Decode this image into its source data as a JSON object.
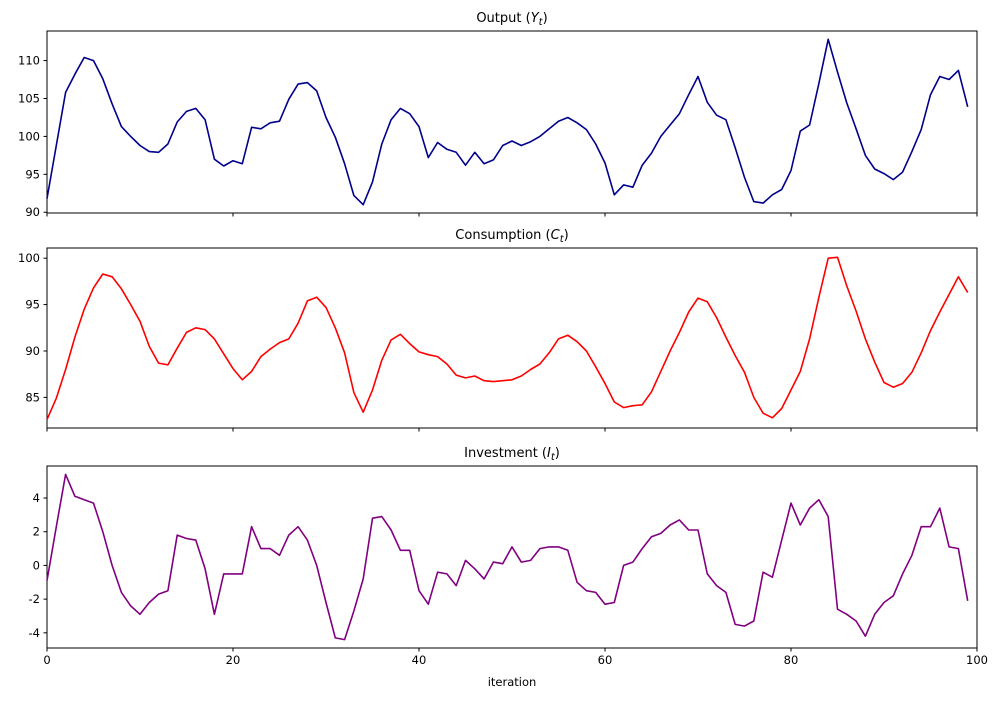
{
  "figure": {
    "xlabel": "iteration",
    "x_ticks": [
      0,
      20,
      40,
      60,
      80,
      100
    ],
    "background_color": "#ffffff",
    "spine_color": "#000000"
  },
  "chart_data": [
    {
      "id": "output",
      "type": "line",
      "title_prefix": "Output (",
      "title_var": "Y",
      "title_sub": "t",
      "title_suffix": ")",
      "color": "#00008B",
      "xlim": [
        0,
        100
      ],
      "ylim": [
        89.9,
        113.9
      ],
      "yticks": [
        90,
        95,
        100,
        105,
        110
      ],
      "grid": false,
      "legend": "none",
      "x_start": 0,
      "values": [
        91.8,
        98.8,
        105.8,
        108.2,
        110.4,
        110.0,
        107.6,
        104.3,
        101.3,
        100.0,
        98.8,
        98.0,
        97.9,
        99.0,
        101.9,
        103.3,
        103.7,
        102.2,
        97.0,
        96.1,
        96.8,
        96.4,
        101.2,
        101.0,
        101.8,
        102.0,
        104.9,
        106.9,
        107.1,
        106.0,
        102.5,
        99.9,
        96.4,
        92.2,
        91.0,
        94.0,
        99.0,
        102.2,
        103.7,
        103.0,
        101.3,
        97.2,
        99.2,
        98.3,
        97.9,
        96.2,
        97.9,
        96.4,
        96.9,
        98.8,
        99.4,
        98.8,
        99.3,
        100.0,
        101.0,
        102.0,
        102.5,
        101.8,
        100.9,
        99.0,
        96.5,
        92.3,
        93.6,
        93.3,
        96.2,
        97.8,
        100.0,
        101.5,
        103.0,
        105.5,
        107.9,
        104.5,
        102.8,
        102.2,
        98.5,
        94.6,
        91.4,
        91.2,
        92.3,
        93.0,
        95.5,
        100.7,
        101.5,
        107.0,
        112.8,
        108.5,
        104.4,
        101.0,
        97.5,
        95.7,
        95.1,
        94.3,
        95.3,
        98.0,
        100.9,
        105.5,
        107.9,
        107.5,
        108.7,
        103.9
      ]
    },
    {
      "id": "consumption",
      "type": "line",
      "title_prefix": "Consumption (",
      "title_var": "C",
      "title_sub": "t",
      "title_suffix": ")",
      "color": "#FF0000",
      "xlim": [
        0,
        100
      ],
      "ylim": [
        81.7,
        101.1
      ],
      "yticks": [
        85,
        90,
        95,
        100
      ],
      "grid": false,
      "legend": "none",
      "x_start": 0,
      "values": [
        82.6,
        84.9,
        88.0,
        91.5,
        94.5,
        96.8,
        98.3,
        98.0,
        96.7,
        95.0,
        93.2,
        90.5,
        88.7,
        88.5,
        90.3,
        92.0,
        92.5,
        92.3,
        91.3,
        89.7,
        88.1,
        86.9,
        87.8,
        89.4,
        90.2,
        90.9,
        91.3,
        93.0,
        95.4,
        95.8,
        94.7,
        92.5,
        89.8,
        85.5,
        83.4,
        85.8,
        89.0,
        91.2,
        91.8,
        90.8,
        89.9,
        89.6,
        89.4,
        88.6,
        87.4,
        87.1,
        87.3,
        86.8,
        86.7,
        86.8,
        86.9,
        87.3,
        88.0,
        88.6,
        89.8,
        91.3,
        91.7,
        91.0,
        90.0,
        88.3,
        86.5,
        84.5,
        83.9,
        84.1,
        84.2,
        85.6,
        87.8,
        90.0,
        92.0,
        94.2,
        95.7,
        95.3,
        93.6,
        91.5,
        89.5,
        87.7,
        85.0,
        83.3,
        82.8,
        83.8,
        85.8,
        87.8,
        91.3,
        95.8,
        100.0,
        100.1,
        97.0,
        94.3,
        91.3,
        88.8,
        86.6,
        86.1,
        86.5,
        87.7,
        89.8,
        92.2,
        94.2,
        96.1,
        98.0,
        96.3
      ]
    },
    {
      "id": "investment",
      "type": "line",
      "title_prefix": "Investment (",
      "title_var": "I",
      "title_sub": "t",
      "title_suffix": ")",
      "color": "#800080",
      "xlim": [
        0,
        100
      ],
      "ylim": [
        -4.9,
        5.9
      ],
      "yticks": [
        -4,
        -2,
        0,
        2,
        4
      ],
      "grid": false,
      "legend": "none",
      "x_start": 0,
      "xlabel": "iteration",
      "values": [
        -0.9,
        2.3,
        5.4,
        4.1,
        3.9,
        3.7,
        2.0,
        0.0,
        -1.6,
        -2.4,
        -2.9,
        -2.2,
        -1.7,
        -1.5,
        1.8,
        1.6,
        1.5,
        -0.2,
        -2.9,
        -0.5,
        -0.5,
        -0.5,
        2.3,
        1.0,
        1.0,
        0.6,
        1.8,
        2.3,
        1.5,
        0.0,
        -2.2,
        -4.3,
        -4.4,
        -2.7,
        -0.8,
        2.8,
        2.9,
        2.1,
        0.9,
        0.9,
        -1.5,
        -2.3,
        -0.4,
        -0.5,
        -1.2,
        0.3,
        -0.2,
        -0.8,
        0.2,
        0.1,
        1.1,
        0.2,
        0.3,
        1.0,
        1.1,
        1.1,
        0.9,
        -1.0,
        -1.5,
        -1.6,
        -2.3,
        -2.2,
        0.0,
        0.2,
        1.0,
        1.7,
        1.9,
        2.4,
        2.7,
        2.1,
        2.1,
        -0.5,
        -1.2,
        -1.6,
        -3.5,
        -3.6,
        -3.3,
        -0.4,
        -0.7,
        1.5,
        3.7,
        2.4,
        3.4,
        3.9,
        2.9,
        -2.6,
        -2.9,
        -3.3,
        -4.2,
        -2.9,
        -2.2,
        -1.8,
        -0.5,
        0.6,
        2.3,
        2.3,
        3.4,
        1.1,
        1.0,
        -2.1
      ]
    }
  ]
}
